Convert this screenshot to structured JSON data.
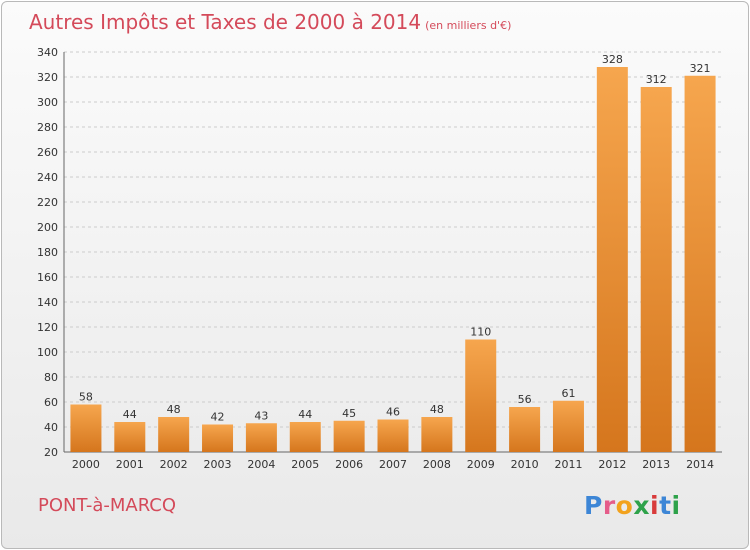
{
  "title": "Autres Impôts et Taxes de 2000 à 2014",
  "subtitle": "(en milliers d'€)",
  "location": "PONT-à-MARCQ",
  "logo": {
    "text": "Proxiti",
    "letters": [
      "P",
      "r",
      "o",
      "x",
      "i",
      "t",
      "i"
    ]
  },
  "colors": {
    "title": "#d44a5a",
    "bar_light": "#f6a64e",
    "bar_dark": "#d5761d",
    "grid": "#cccccc"
  },
  "chart_data": {
    "type": "bar",
    "categories": [
      "2000",
      "2001",
      "2002",
      "2003",
      "2004",
      "2005",
      "2006",
      "2007",
      "2008",
      "2009",
      "2010",
      "2011",
      "2012",
      "2013",
      "2014"
    ],
    "values": [
      58,
      44,
      48,
      42,
      43,
      44,
      45,
      46,
      48,
      110,
      56,
      61,
      328,
      312,
      321
    ],
    "data_labels": [
      "58",
      "44",
      "48",
      "42",
      "43",
      "44",
      "45",
      "46",
      "48",
      "110",
      "56",
      "61",
      "328",
      "312",
      "321"
    ],
    "title": "Autres Impôts et Taxes de 2000 à 2014",
    "xlabel": "",
    "ylabel": "",
    "ylim": [
      20,
      340
    ],
    "yticks": [
      20,
      40,
      60,
      80,
      100,
      120,
      140,
      160,
      180,
      200,
      220,
      240,
      260,
      280,
      300,
      320,
      340
    ],
    "ytick_labels": [
      "20",
      "40",
      "60",
      "80",
      "100",
      "120",
      "140",
      "160",
      "180",
      "200",
      "220",
      "240",
      "260",
      "280",
      "300",
      "320",
      "340"
    ],
    "grid": true,
    "legend": "none"
  }
}
